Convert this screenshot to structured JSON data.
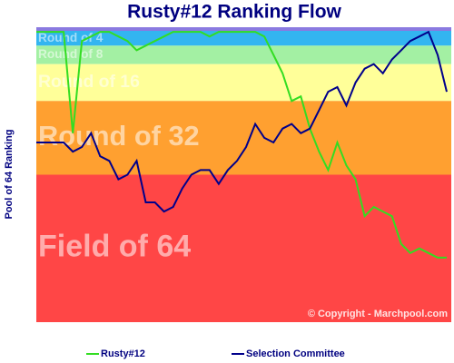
{
  "chart_data": {
    "type": "line",
    "title": "Rusty#12 Ranking Flow",
    "y_label": "Pool of 64 Ranking",
    "copyright": "© Copyright - Marchpool.com",
    "ylim": [
      0,
      64
    ],
    "bands": [
      {
        "label": "Round of 4",
        "from": 0,
        "to": 4,
        "color": "#33b5f0"
      },
      {
        "label": "Round of 8",
        "from": 4,
        "to": 8,
        "color": "#a3f0a3"
      },
      {
        "label": "Round of 16",
        "from": 8,
        "to": 16,
        "color": "#ffff99"
      },
      {
        "label": "Round of 32",
        "from": 16,
        "to": 32,
        "color": "#ffa030"
      },
      {
        "label": "Field of 64",
        "from": 32,
        "to": 64,
        "color": "#ff4646"
      }
    ],
    "series": [
      {
        "name": "Rusty#12",
        "color": "#33dd22",
        "values": [
          1,
          1,
          1,
          1,
          23,
          3,
          2,
          1,
          1,
          2,
          3,
          5,
          4,
          3,
          2,
          1,
          1,
          1,
          1,
          2,
          1,
          1,
          1,
          1,
          1,
          2,
          6,
          10,
          16,
          15,
          22,
          27,
          31,
          25,
          30,
          33,
          41,
          39,
          40,
          41,
          47,
          49,
          48,
          49,
          50,
          50
        ]
      },
      {
        "name": "Selection Committee",
        "color": "#00008b",
        "values": [
          25,
          25,
          25,
          25,
          27,
          26,
          23,
          28,
          29,
          33,
          32,
          29,
          38,
          38,
          40,
          39,
          35,
          32,
          31,
          31,
          34,
          31,
          29,
          26,
          21,
          24,
          25,
          22,
          21,
          23,
          22,
          18,
          14,
          13,
          17,
          12,
          9,
          8,
          10,
          7,
          5,
          3,
          2,
          1,
          6,
          14
        ]
      }
    ]
  }
}
